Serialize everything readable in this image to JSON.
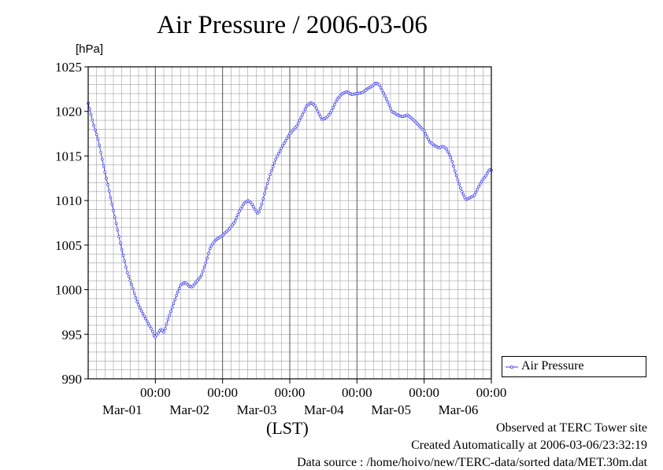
{
  "page": {
    "title": "Air Pressure / 2006-03-06",
    "unit_label": "[hPa]",
    "x_axis_label": "(LST)",
    "footer_site": "Observed at TERC Tower site",
    "footer_created": "Created Automatically at 2006-03-06/23:32:19",
    "footer_source": "Data source : /home/hoivo/new/TERC-data/sorted  data/MET.30m.dat"
  },
  "colors": {
    "series": "#3c3cf0",
    "grid": "#a0a0a0",
    "axis": "#000000"
  },
  "chart_data": {
    "type": "line",
    "ylim": [
      990,
      1025
    ],
    "y_ticks": [
      "990",
      "995",
      "1000",
      "1005",
      "1010",
      "1015",
      "1020",
      "1025"
    ],
    "x_ticks": [
      {
        "time": "00:00",
        "date": "Mar-01"
      },
      {
        "time": "00:00",
        "date": "Mar-02"
      },
      {
        "time": "00:00",
        "date": "Mar-03"
      },
      {
        "time": "00:00",
        "date": "Mar-04"
      },
      {
        "time": "00:00",
        "date": "Mar-05"
      },
      {
        "time": "00:00",
        "date": "Mar-06"
      }
    ],
    "x_range_days": [
      -1.0,
      5.0
    ],
    "legend": [
      "Air Pressure"
    ],
    "legend_position": "right",
    "grid": true,
    "series": [
      {
        "name": "Air Pressure",
        "points": [
          [
            -1.0,
            1020.9
          ],
          [
            -0.92,
            1018.5
          ],
          [
            -0.85,
            1016.8
          ],
          [
            -0.78,
            1014.2
          ],
          [
            -0.7,
            1011.5
          ],
          [
            -0.6,
            1008.0
          ],
          [
            -0.5,
            1004.5
          ],
          [
            -0.42,
            1002.0
          ],
          [
            -0.35,
            1000.5
          ],
          [
            -0.28,
            998.8
          ],
          [
            -0.2,
            997.5
          ],
          [
            -0.12,
            996.4
          ],
          [
            -0.05,
            995.5
          ],
          [
            -0.01,
            994.6
          ],
          [
            0.03,
            995.0
          ],
          [
            0.08,
            995.6
          ],
          [
            0.13,
            995.2
          ],
          [
            0.18,
            996.5
          ],
          [
            0.25,
            998.0
          ],
          [
            0.32,
            999.5
          ],
          [
            0.38,
            1000.6
          ],
          [
            0.45,
            1000.8
          ],
          [
            0.5,
            1000.4
          ],
          [
            0.55,
            1000.3
          ],
          [
            0.6,
            1000.8
          ],
          [
            0.68,
            1001.5
          ],
          [
            0.75,
            1003.0
          ],
          [
            0.82,
            1004.8
          ],
          [
            0.9,
            1005.6
          ],
          [
            1.0,
            1006.1
          ],
          [
            1.1,
            1006.8
          ],
          [
            1.18,
            1007.6
          ],
          [
            1.25,
            1008.8
          ],
          [
            1.32,
            1009.7
          ],
          [
            1.38,
            1010.0
          ],
          [
            1.43,
            1009.7
          ],
          [
            1.48,
            1009.0
          ],
          [
            1.53,
            1008.5
          ],
          [
            1.58,
            1009.5
          ],
          [
            1.65,
            1011.5
          ],
          [
            1.72,
            1013.2
          ],
          [
            1.8,
            1014.8
          ],
          [
            1.9,
            1016.2
          ],
          [
            2.0,
            1017.5
          ],
          [
            2.1,
            1018.3
          ],
          [
            2.18,
            1019.5
          ],
          [
            2.25,
            1020.6
          ],
          [
            2.32,
            1021.0
          ],
          [
            2.38,
            1020.6
          ],
          [
            2.43,
            1019.8
          ],
          [
            2.48,
            1019.1
          ],
          [
            2.55,
            1019.3
          ],
          [
            2.62,
            1020.0
          ],
          [
            2.7,
            1021.3
          ],
          [
            2.78,
            1022.0
          ],
          [
            2.85,
            1022.2
          ],
          [
            2.92,
            1021.9
          ],
          [
            3.0,
            1022.0
          ],
          [
            3.08,
            1022.1
          ],
          [
            3.15,
            1022.5
          ],
          [
            3.22,
            1022.8
          ],
          [
            3.28,
            1023.2
          ],
          [
            3.33,
            1023.0
          ],
          [
            3.38,
            1022.3
          ],
          [
            3.45,
            1021.2
          ],
          [
            3.52,
            1020.0
          ],
          [
            3.6,
            1019.6
          ],
          [
            3.68,
            1019.4
          ],
          [
            3.75,
            1019.6
          ],
          [
            3.82,
            1019.2
          ],
          [
            3.9,
            1018.6
          ],
          [
            4.0,
            1017.8
          ],
          [
            4.08,
            1016.6
          ],
          [
            4.15,
            1016.2
          ],
          [
            4.22,
            1015.9
          ],
          [
            4.28,
            1016.1
          ],
          [
            4.33,
            1015.8
          ],
          [
            4.4,
            1014.8
          ],
          [
            4.47,
            1013.0
          ],
          [
            4.55,
            1011.2
          ],
          [
            4.62,
            1010.1
          ],
          [
            4.68,
            1010.3
          ],
          [
            4.75,
            1010.6
          ],
          [
            4.8,
            1011.4
          ],
          [
            4.86,
            1012.2
          ],
          [
            4.92,
            1012.8
          ],
          [
            4.97,
            1013.5
          ],
          [
            5.0,
            1013.4
          ]
        ]
      }
    ]
  }
}
